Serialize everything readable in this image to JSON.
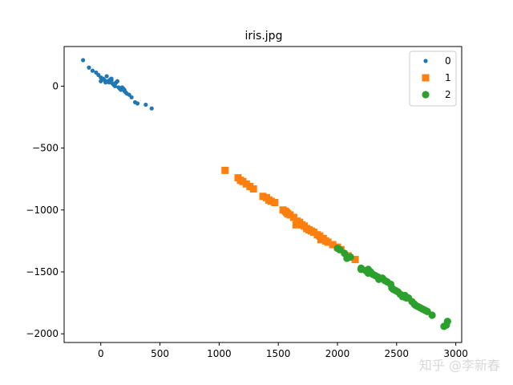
{
  "chart_data": {
    "type": "scatter",
    "title": "iris.jpg",
    "xlabel": "",
    "ylabel": "",
    "xlim": [
      -310,
      3050
    ],
    "ylim": [
      -2070,
      320
    ],
    "xticks": [
      0,
      500,
      1000,
      1500,
      2000,
      2500,
      3000
    ],
    "yticks": [
      0,
      -500,
      -1000,
      -1500,
      -2000
    ],
    "grid": false,
    "legend": "top-right",
    "series": [
      {
        "name": "0",
        "color": "#1f77b4",
        "marker": "small-circle",
        "points": [
          [
            -150,
            210
          ],
          [
            -100,
            150
          ],
          [
            -70,
            125
          ],
          [
            -40,
            110
          ],
          [
            -20,
            90
          ],
          [
            0,
            70
          ],
          [
            10,
            55
          ],
          [
            30,
            50
          ],
          [
            50,
            80
          ],
          [
            60,
            40
          ],
          [
            70,
            30
          ],
          [
            80,
            55
          ],
          [
            90,
            45
          ],
          [
            100,
            20
          ],
          [
            110,
            10
          ],
          [
            120,
            0
          ],
          [
            130,
            30
          ],
          [
            140,
            40
          ],
          [
            150,
            -10
          ],
          [
            160,
            -20
          ],
          [
            170,
            -30
          ],
          [
            180,
            -10
          ],
          [
            190,
            -20
          ],
          [
            200,
            -40
          ],
          [
            210,
            -50
          ],
          [
            220,
            -60
          ],
          [
            240,
            -70
          ],
          [
            260,
            -90
          ],
          [
            290,
            -130
          ],
          [
            310,
            -140
          ],
          [
            380,
            -150
          ],
          [
            430,
            -180
          ],
          [
            0,
            40
          ],
          [
            20,
            60
          ],
          [
            40,
            30
          ],
          [
            90,
            60
          ],
          [
            120,
            20
          ],
          [
            200,
            -30
          ]
        ]
      },
      {
        "name": "1",
        "color": "#ff7f0e",
        "marker": "square",
        "points": [
          [
            1050,
            -680
          ],
          [
            1160,
            -740
          ],
          [
            1180,
            -760
          ],
          [
            1200,
            -770
          ],
          [
            1230,
            -790
          ],
          [
            1260,
            -810
          ],
          [
            1290,
            -830
          ],
          [
            1370,
            -890
          ],
          [
            1400,
            -900
          ],
          [
            1420,
            -920
          ],
          [
            1440,
            -930
          ],
          [
            1470,
            -940
          ],
          [
            1540,
            -1000
          ],
          [
            1560,
            -1010
          ],
          [
            1580,
            -1030
          ],
          [
            1600,
            -1040
          ],
          [
            1630,
            -1060
          ],
          [
            1660,
            -1090
          ],
          [
            1680,
            -1100
          ],
          [
            1700,
            -1120
          ],
          [
            1720,
            -1130
          ],
          [
            1760,
            -1160
          ],
          [
            1780,
            -1170
          ],
          [
            1800,
            -1180
          ],
          [
            1830,
            -1200
          ],
          [
            1850,
            -1210
          ],
          [
            1880,
            -1230
          ],
          [
            1900,
            -1250
          ],
          [
            1920,
            -1260
          ],
          [
            1960,
            -1280
          ],
          [
            2000,
            -1300
          ],
          [
            2030,
            -1320
          ],
          [
            2090,
            -1370
          ],
          [
            2150,
            -1400
          ],
          [
            1650,
            -1120
          ],
          [
            1740,
            -1150
          ],
          [
            1860,
            -1240
          ],
          [
            1570,
            -1020
          ]
        ]
      },
      {
        "name": "2",
        "color": "#2ca02c",
        "marker": "circle",
        "points": [
          [
            2000,
            -1310
          ],
          [
            2020,
            -1320
          ],
          [
            2060,
            -1350
          ],
          [
            2080,
            -1390
          ],
          [
            2110,
            -1380
          ],
          [
            2200,
            -1480
          ],
          [
            2240,
            -1490
          ],
          [
            2260,
            -1480
          ],
          [
            2280,
            -1500
          ],
          [
            2300,
            -1520
          ],
          [
            2320,
            -1530
          ],
          [
            2350,
            -1560
          ],
          [
            2380,
            -1550
          ],
          [
            2400,
            -1570
          ],
          [
            2420,
            -1580
          ],
          [
            2450,
            -1600
          ],
          [
            2470,
            -1640
          ],
          [
            2490,
            -1650
          ],
          [
            2510,
            -1660
          ],
          [
            2530,
            -1680
          ],
          [
            2550,
            -1700
          ],
          [
            2570,
            -1690
          ],
          [
            2600,
            -1710
          ],
          [
            2630,
            -1740
          ],
          [
            2650,
            -1760
          ],
          [
            2680,
            -1780
          ],
          [
            2700,
            -1790
          ],
          [
            2720,
            -1800
          ],
          [
            2740,
            -1810
          ],
          [
            2760,
            -1820
          ],
          [
            2800,
            -1850
          ],
          [
            2900,
            -1940
          ],
          [
            2920,
            -1930
          ],
          [
            2930,
            -1900
          ],
          [
            2260,
            -1510
          ],
          [
            2340,
            -1540
          ],
          [
            2460,
            -1630
          ],
          [
            2580,
            -1710
          ],
          [
            2660,
            -1770
          ],
          [
            2200,
            -1470
          ]
        ]
      }
    ]
  },
  "watermark": "知乎 @李新春"
}
